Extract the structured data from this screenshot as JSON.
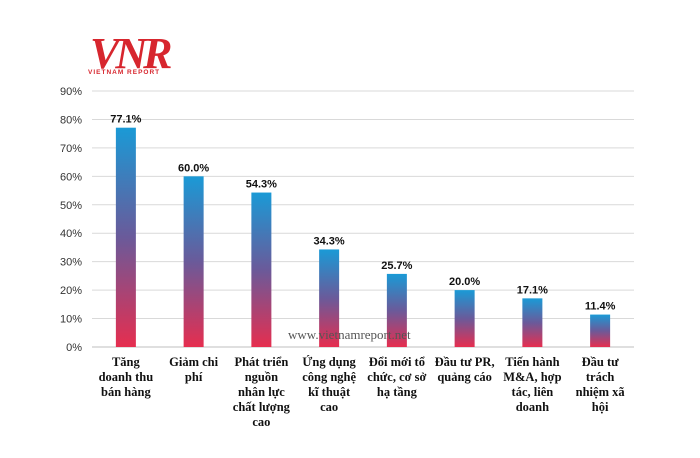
{
  "logo": {
    "mark_text": "VNR",
    "wordmark": "VIETNAM REPORT",
    "color": "#d7262e"
  },
  "watermark": "www.vietnamreport.net",
  "chart_data": {
    "type": "bar",
    "title": "",
    "xlabel": "",
    "ylabel": "",
    "ylim": [
      0,
      90
    ],
    "y_ticks": [
      "0%",
      "10%",
      "20%",
      "30%",
      "40%",
      "50%",
      "60%",
      "70%",
      "80%",
      "90%"
    ],
    "grid": true,
    "categories": [
      [
        "Tăng",
        "doanh thu",
        "bán hàng"
      ],
      [
        "Giảm chi",
        "phí"
      ],
      [
        "Phát triển",
        "nguồn",
        "nhân lực",
        "chất lượng",
        "cao"
      ],
      [
        "Ứng dụng",
        "công nghệ",
        "kĩ thuật",
        "cao"
      ],
      [
        "Đổi mới tổ",
        "chức, cơ sở",
        "hạ tầng"
      ],
      [
        "Đầu tư PR,",
        "quảng cáo"
      ],
      [
        "Tiến hành",
        "M&A, hợp",
        "tác, liên",
        "doanh"
      ],
      [
        "Đầu tư",
        "trách",
        "nhiệm xã",
        "hội"
      ]
    ],
    "values": [
      77.1,
      60.0,
      54.3,
      34.3,
      25.7,
      20.0,
      17.1,
      11.4
    ],
    "data_labels": [
      "77.1%",
      "60.0%",
      "54.3%",
      "34.3%",
      "25.7%",
      "20.0%",
      "17.1%",
      "11.4%"
    ],
    "colors": {
      "bar_top": "#1a9ad6",
      "bar_mid": "#6a5a9a",
      "bar_bottom": "#e62e4f",
      "grid": "#d9d9d9",
      "axis": "#bfbfbf"
    }
  }
}
